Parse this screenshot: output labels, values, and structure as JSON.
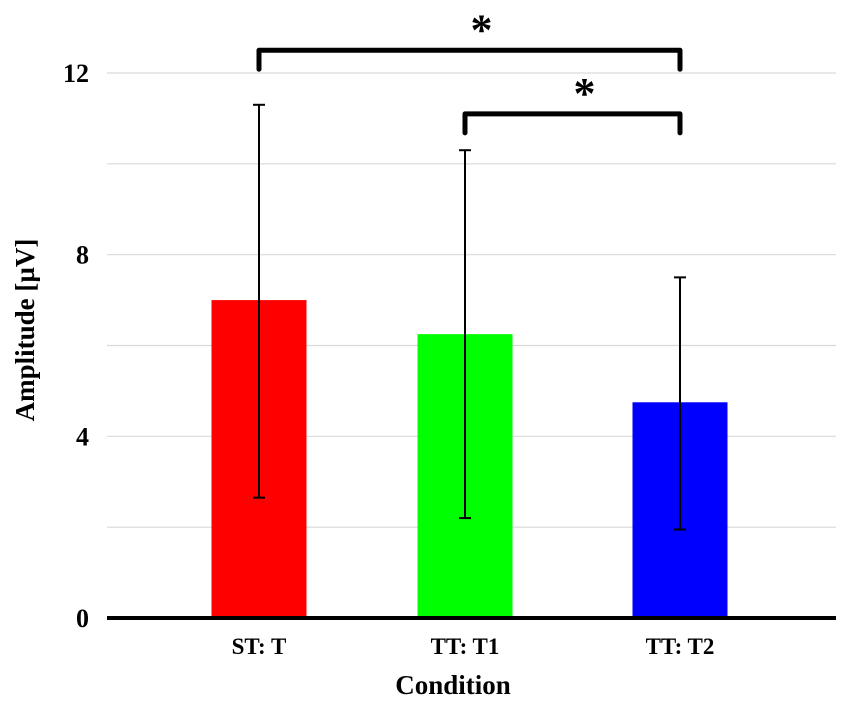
{
  "chart_data": {
    "type": "bar",
    "title": "",
    "xlabel": "Condition",
    "ylabel": "Amplitude [µV]",
    "ylim": [
      0,
      12
    ],
    "yticks": [
      "0",
      "4",
      "8",
      "12"
    ],
    "ytick_values": [
      0,
      4,
      8,
      12
    ],
    "grid_values": [
      2,
      4,
      6,
      8,
      10,
      12
    ],
    "grid": true,
    "categories": [
      "ST: T",
      "TT: T1",
      "TT: T2"
    ],
    "values": [
      7.0,
      6.25,
      4.75
    ],
    "error_upper": [
      11.3,
      10.3,
      7.5
    ],
    "error_lower": [
      2.65,
      2.2,
      1.95
    ],
    "colors": [
      "#ff0000",
      "#00ff00",
      "#0000ff"
    ],
    "significance": [
      {
        "from": 0,
        "to": 2,
        "label": "*",
        "level": 12.5
      },
      {
        "from": 1,
        "to": 2,
        "label": "*",
        "level": 11.1
      }
    ]
  }
}
